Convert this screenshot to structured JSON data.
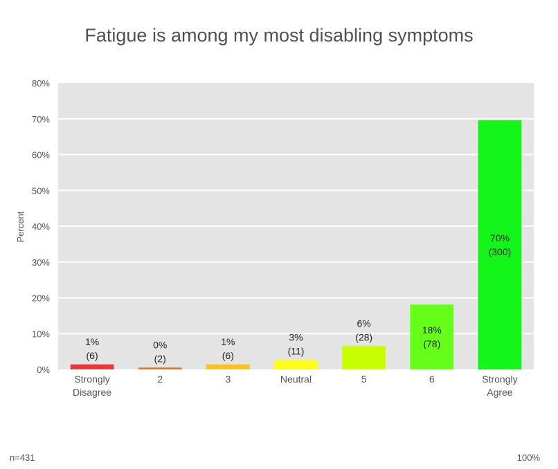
{
  "chart_data": {
    "type": "bar",
    "title": "Fatigue is among my most disabling symptoms",
    "ylabel": "Percent",
    "xlabel": "",
    "ylim": [
      0,
      80
    ],
    "yticks": [
      0,
      10,
      20,
      30,
      40,
      50,
      60,
      70,
      80
    ],
    "ytick_labels": [
      "0%",
      "10%",
      "20%",
      "30%",
      "40%",
      "50%",
      "60%",
      "70%",
      "80%"
    ],
    "grid": true,
    "categories": [
      {
        "lines": [
          "Strongly",
          "Disagree"
        ]
      },
      {
        "lines": [
          "2"
        ]
      },
      {
        "lines": [
          "3"
        ]
      },
      {
        "lines": [
          "Neutral"
        ]
      },
      {
        "lines": [
          "5"
        ]
      },
      {
        "lines": [
          "6"
        ]
      },
      {
        "lines": [
          "Strongly",
          "Agree"
        ]
      }
    ],
    "values": [
      1.4,
      0.5,
      1.4,
      2.6,
      6.5,
      18.1,
      69.6
    ],
    "pct_labels": [
      "1%",
      "0%",
      "1%",
      "3%",
      "6%",
      "18%",
      "70%"
    ],
    "count_labels": [
      "(6)",
      "(2)",
      "(6)",
      "(11)",
      "(28)",
      "(78)",
      "(300)"
    ],
    "colors": [
      "#e8373a",
      "#f06a2a",
      "#f9c31f",
      "#ffff1a",
      "#c8ff00",
      "#66ff1a",
      "#14f51a"
    ]
  },
  "footer": {
    "n_label": "n=431",
    "total_label": "100%"
  }
}
